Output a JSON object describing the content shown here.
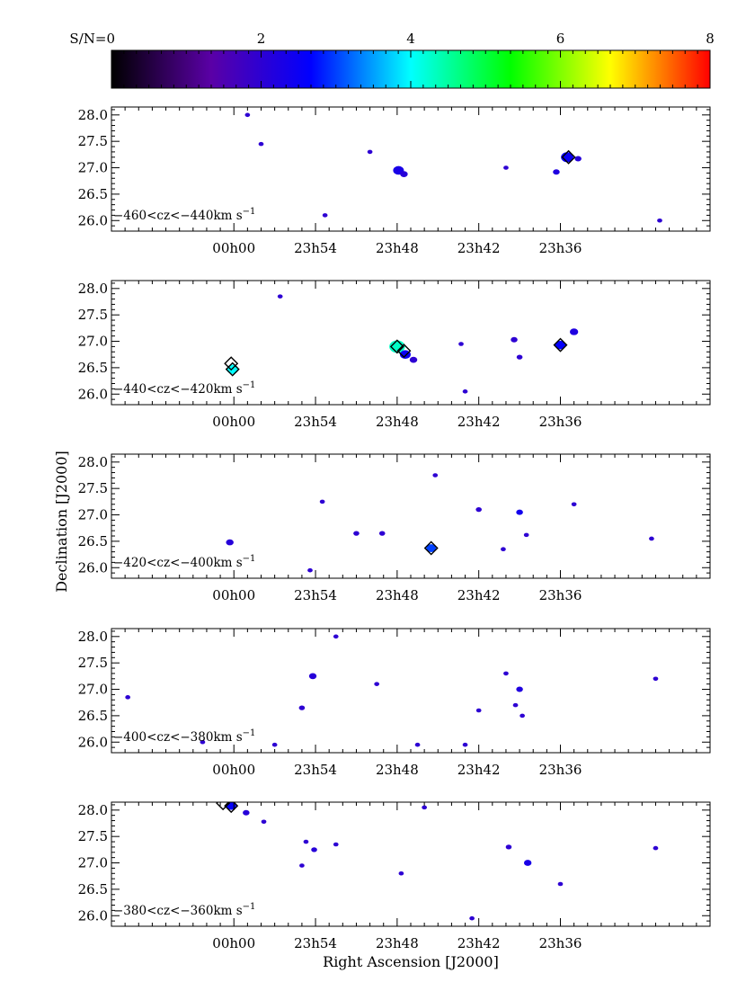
{
  "colorbar": {
    "label": "S/N",
    "range": [
      0,
      8
    ],
    "tick_values": [
      0,
      2,
      4,
      6,
      8
    ],
    "tick_labels": [
      "S/N=0",
      "2",
      "4",
      "6",
      "8"
    ],
    "colormap": "rainbow",
    "stops": [
      "#000000",
      "#5a00a6",
      "#0000ff",
      "#00ffff",
      "#00ff00",
      "#ffff00",
      "#ff0000"
    ]
  },
  "chart_data": {
    "type": "scatter",
    "xlabel": "Right Ascension [J2000]",
    "ylabel": "Declination [J2000]",
    "x_ticks": [
      "00h00",
      "23h54",
      "23h48",
      "23h42",
      "23h36"
    ],
    "x_tick_minutes": [
      0,
      -6,
      -12,
      -18,
      -24
    ],
    "xlim_minutes": [
      9,
      -35
    ],
    "y_ticks": [
      "28.0",
      "27.5",
      "27.0",
      "26.5",
      "26.0"
    ],
    "y_tick_values": [
      28.0,
      27.5,
      27.0,
      26.5,
      26.0
    ],
    "ylim": [
      25.8,
      28.15
    ],
    "panels": [
      {
        "label_pre": "−460<cz<−440km s",
        "label_sup": "−1",
        "markers": [
          {
            "ra": -24.6,
            "dec": 27.2
          }
        ],
        "blobs": [
          {
            "ra": -12.1,
            "dec": 26.95,
            "sn": 2.3,
            "size": 1.0
          },
          {
            "ra": -12.5,
            "dec": 26.88,
            "sn": 2.1,
            "size": 0.6
          },
          {
            "ra": -24.5,
            "dec": 27.2,
            "sn": 2.5,
            "size": 1.2
          },
          {
            "ra": -23.7,
            "dec": 26.92,
            "sn": 2.2,
            "size": 0.5
          },
          {
            "ra": -25.3,
            "dec": 27.17,
            "sn": 2.1,
            "size": 0.5
          },
          {
            "ra": -10.0,
            "dec": 27.3,
            "sn": 2.0,
            "size": 0.3
          },
          {
            "ra": -6.7,
            "dec": 26.1,
            "sn": 2.0,
            "size": 0.3
          },
          {
            "ra": -20.0,
            "dec": 27.0,
            "sn": 2.0,
            "size": 0.3
          },
          {
            "ra": -1.0,
            "dec": 28.0,
            "sn": 2.0,
            "size": 0.3
          },
          {
            "ra": -2.0,
            "dec": 27.45,
            "sn": 2.0,
            "size": 0.3
          },
          {
            "ra": -31.3,
            "dec": 26.0,
            "sn": 2.0,
            "size": 0.3
          }
        ]
      },
      {
        "label_pre": "−440<cz<−420km s",
        "label_sup": "−1",
        "markers": [
          {
            "ra": 0.2,
            "dec": 26.58
          },
          {
            "ra": 0.1,
            "dec": 26.47
          },
          {
            "ra": -12.0,
            "dec": 26.9
          },
          {
            "ra": -12.5,
            "dec": 26.82
          },
          {
            "ra": -24.0,
            "dec": 26.93
          }
        ],
        "blobs": [
          {
            "ra": 0.1,
            "dec": 26.47,
            "sn": 4.0,
            "size": 1.1
          },
          {
            "ra": -12.0,
            "dec": 26.9,
            "sn": 4.3,
            "size": 1.6
          },
          {
            "ra": -12.6,
            "dec": 26.75,
            "sn": 2.5,
            "size": 1.0
          },
          {
            "ra": -13.2,
            "dec": 26.65,
            "sn": 2.0,
            "size": 0.6
          },
          {
            "ra": -24.0,
            "dec": 26.93,
            "sn": 2.6,
            "size": 1.0
          },
          {
            "ra": -25.0,
            "dec": 27.18,
            "sn": 2.2,
            "size": 0.7
          },
          {
            "ra": -20.6,
            "dec": 27.03,
            "sn": 2.0,
            "size": 0.5
          },
          {
            "ra": -21.0,
            "dec": 26.7,
            "sn": 2.0,
            "size": 0.4
          },
          {
            "ra": -3.4,
            "dec": 27.85,
            "sn": 2.0,
            "size": 0.3
          },
          {
            "ra": -16.7,
            "dec": 26.95,
            "sn": 2.0,
            "size": 0.3
          },
          {
            "ra": -17.0,
            "dec": 26.05,
            "sn": 2.0,
            "size": 0.3
          }
        ]
      },
      {
        "label_pre": "−420<cz<−400km s",
        "label_sup": "−1",
        "markers": [
          {
            "ra": -14.5,
            "dec": 26.37
          }
        ],
        "blobs": [
          {
            "ra": -14.5,
            "dec": 26.37,
            "sn": 3.0,
            "size": 0.9
          },
          {
            "ra": 0.3,
            "dec": 26.48,
            "sn": 2.1,
            "size": 0.6
          },
          {
            "ra": -9.0,
            "dec": 26.65,
            "sn": 2.0,
            "size": 0.4
          },
          {
            "ra": -18.0,
            "dec": 27.1,
            "sn": 2.0,
            "size": 0.4
          },
          {
            "ra": -21.0,
            "dec": 27.05,
            "sn": 2.4,
            "size": 0.5
          },
          {
            "ra": -21.5,
            "dec": 26.62,
            "sn": 2.0,
            "size": 0.3
          },
          {
            "ra": -10.9,
            "dec": 26.65,
            "sn": 2.0,
            "size": 0.4
          },
          {
            "ra": -6.5,
            "dec": 27.25,
            "sn": 2.0,
            "size": 0.3
          },
          {
            "ra": -5.6,
            "dec": 25.95,
            "sn": 2.0,
            "size": 0.3
          },
          {
            "ra": -25.0,
            "dec": 27.2,
            "sn": 2.0,
            "size": 0.3
          },
          {
            "ra": -30.7,
            "dec": 26.55,
            "sn": 2.0,
            "size": 0.3
          },
          {
            "ra": -14.8,
            "dec": 27.75,
            "sn": 2.0,
            "size": 0.3
          },
          {
            "ra": -19.8,
            "dec": 26.35,
            "sn": 2.0,
            "size": 0.3
          }
        ]
      },
      {
        "label_pre": "−400<cz<−380km s",
        "label_sup": "−1",
        "markers": [],
        "blobs": [
          {
            "ra": -5.8,
            "dec": 27.25,
            "sn": 2.1,
            "size": 0.6
          },
          {
            "ra": -5.0,
            "dec": 26.65,
            "sn": 2.0,
            "size": 0.4
          },
          {
            "ra": -21.0,
            "dec": 27.0,
            "sn": 2.2,
            "size": 0.5
          },
          {
            "ra": -20.7,
            "dec": 26.7,
            "sn": 2.0,
            "size": 0.3
          },
          {
            "ra": -21.2,
            "dec": 26.5,
            "sn": 2.0,
            "size": 0.3
          },
          {
            "ra": -20.0,
            "dec": 27.3,
            "sn": 2.0,
            "size": 0.3
          },
          {
            "ra": 2.3,
            "dec": 26.0,
            "sn": 2.0,
            "size": 0.3
          },
          {
            "ra": -3.0,
            "dec": 25.95,
            "sn": 2.0,
            "size": 0.3
          },
          {
            "ra": -7.5,
            "dec": 28.0,
            "sn": 2.0,
            "size": 0.3
          },
          {
            "ra": -10.5,
            "dec": 27.1,
            "sn": 2.0,
            "size": 0.3
          },
          {
            "ra": -13.5,
            "dec": 25.95,
            "sn": 2.0,
            "size": 0.3
          },
          {
            "ra": -17.0,
            "dec": 25.95,
            "sn": 2.0,
            "size": 0.3
          },
          {
            "ra": -31.0,
            "dec": 27.2,
            "sn": 2.0,
            "size": 0.3
          },
          {
            "ra": -18.0,
            "dec": 26.6,
            "sn": 2.0,
            "size": 0.3
          },
          {
            "ra": 7.8,
            "dec": 26.85,
            "sn": 2.0,
            "size": 0.3
          }
        ]
      },
      {
        "label_pre": "−380<cz<−360km s",
        "label_sup": "−1",
        "markers": [
          {
            "ra": 0.8,
            "dec": 28.13
          },
          {
            "ra": 0.2,
            "dec": 28.08
          }
        ],
        "blobs": [
          {
            "ra": 0.2,
            "dec": 28.08,
            "sn": 2.6,
            "size": 0.9
          },
          {
            "ra": -0.9,
            "dec": 27.95,
            "sn": 2.1,
            "size": 0.5
          },
          {
            "ra": -2.2,
            "dec": 27.78,
            "sn": 2.0,
            "size": 0.3
          },
          {
            "ra": -5.9,
            "dec": 27.25,
            "sn": 2.1,
            "size": 0.4
          },
          {
            "ra": -5.3,
            "dec": 27.4,
            "sn": 2.0,
            "size": 0.3
          },
          {
            "ra": -21.6,
            "dec": 27.0,
            "sn": 2.3,
            "size": 0.6
          },
          {
            "ra": -20.2,
            "dec": 27.3,
            "sn": 2.0,
            "size": 0.4
          },
          {
            "ra": -24.0,
            "dec": 26.6,
            "sn": 2.0,
            "size": 0.3
          },
          {
            "ra": -31.0,
            "dec": 27.28,
            "sn": 2.0,
            "size": 0.3
          },
          {
            "ra": -12.3,
            "dec": 26.8,
            "sn": 2.0,
            "size": 0.3
          },
          {
            "ra": -14.0,
            "dec": 28.05,
            "sn": 2.0,
            "size": 0.3
          },
          {
            "ra": -17.5,
            "dec": 25.95,
            "sn": 2.0,
            "size": 0.3
          },
          {
            "ra": -5.0,
            "dec": 26.95,
            "sn": 2.0,
            "size": 0.3
          },
          {
            "ra": -7.5,
            "dec": 27.35,
            "sn": 2.0,
            "size": 0.3
          }
        ]
      }
    ]
  }
}
